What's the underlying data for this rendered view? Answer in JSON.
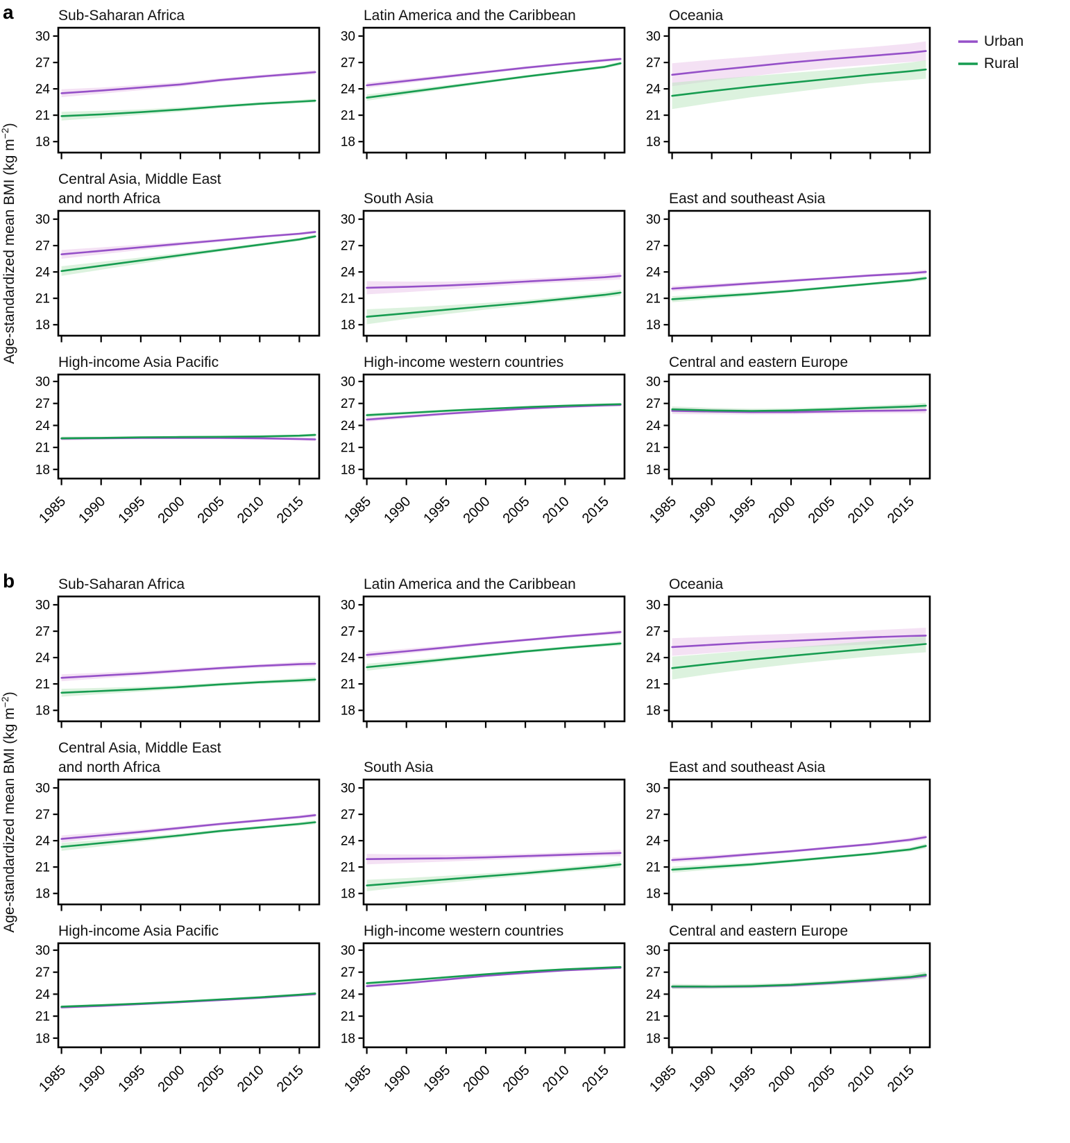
{
  "figure": {
    "y_axis_label": {
      "prefix": "Age-standardized mean BMI (kg m",
      "sup": "−2",
      "suffix": ")"
    },
    "legend": [
      {
        "label": "Urban",
        "color": "#9550c8"
      },
      {
        "label": "Rural",
        "color": "#169c50"
      }
    ]
  },
  "chart_data": {
    "type": "line",
    "x": [
      1985,
      1990,
      1995,
      2000,
      2005,
      2010,
      2015,
      2017
    ],
    "x_ticks": [
      1985,
      1990,
      1995,
      2000,
      2005,
      2010,
      2015
    ],
    "y_ticks": [
      18,
      21,
      24,
      27,
      30
    ],
    "ylim": [
      16.75,
      30.95
    ],
    "xlabel": "",
    "ylabel": "Age-standardized mean BMI (kg m-2)",
    "series_names": [
      "Urban",
      "Rural"
    ],
    "legend_position": "top-right",
    "grid": false,
    "colors": {
      "urban": "#9550c8",
      "rural": "#169c50",
      "urban_band": "#e9c4ea",
      "rural_band": "#b9e6bd"
    },
    "panels": [
      {
        "id": "a",
        "label": "a",
        "charts": [
          {
            "title": "Sub-Saharan Africa",
            "urban": [
              23.5,
              23.8,
              24.15,
              24.5,
              25.0,
              25.4,
              25.75,
              25.9
            ],
            "urban_band": [
              0.45,
              0.35,
              0.3,
              0.25,
              0.2,
              0.18,
              0.2,
              0.25
            ],
            "rural": [
              20.9,
              21.1,
              21.35,
              21.65,
              22.0,
              22.3,
              22.55,
              22.65
            ],
            "rural_band": [
              0.5,
              0.4,
              0.3,
              0.25,
              0.2,
              0.18,
              0.2,
              0.22
            ]
          },
          {
            "title": "Latin America and the Caribbean",
            "urban": [
              24.4,
              24.9,
              25.4,
              25.9,
              26.4,
              26.85,
              27.25,
              27.4
            ],
            "urban_band": [
              0.3,
              0.25,
              0.2,
              0.18,
              0.15,
              0.15,
              0.18,
              0.2
            ],
            "rural": [
              23.0,
              23.6,
              24.2,
              24.8,
              25.4,
              25.95,
              26.5,
              26.9
            ],
            "rural_band": [
              0.35,
              0.28,
              0.22,
              0.18,
              0.15,
              0.15,
              0.18,
              0.2
            ]
          },
          {
            "title": "Oceania",
            "urban": [
              25.6,
              26.1,
              26.55,
              27.0,
              27.4,
              27.75,
              28.1,
              28.3
            ],
            "urban_band": [
              1.3,
              1.2,
              1.1,
              1.05,
              1.0,
              1.0,
              1.05,
              1.1
            ],
            "rural": [
              23.2,
              23.75,
              24.25,
              24.7,
              25.15,
              25.6,
              26.0,
              26.2
            ],
            "rural_band": [
              1.5,
              1.35,
              1.2,
              1.1,
              1.0,
              0.95,
              1.0,
              1.05
            ]
          },
          {
            "title": "Central Asia, Middle East\nand north Africa",
            "urban": [
              26.0,
              26.4,
              26.8,
              27.2,
              27.6,
              28.0,
              28.35,
              28.55
            ],
            "urban_band": [
              0.5,
              0.4,
              0.3,
              0.22,
              0.18,
              0.15,
              0.15,
              0.18
            ],
            "rural": [
              24.1,
              24.7,
              25.3,
              25.9,
              26.5,
              27.1,
              27.7,
              28.05
            ],
            "rural_band": [
              0.55,
              0.45,
              0.35,
              0.25,
              0.2,
              0.17,
              0.18,
              0.2
            ]
          },
          {
            "title": "South Asia",
            "urban": [
              22.2,
              22.3,
              22.45,
              22.65,
              22.9,
              23.15,
              23.4,
              23.55
            ],
            "urban_band": [
              0.75,
              0.6,
              0.45,
              0.35,
              0.3,
              0.3,
              0.35,
              0.4
            ],
            "rural": [
              18.9,
              19.3,
              19.7,
              20.1,
              20.5,
              20.95,
              21.4,
              21.65
            ],
            "rural_band": [
              0.85,
              0.65,
              0.5,
              0.38,
              0.3,
              0.28,
              0.3,
              0.35
            ]
          },
          {
            "title": "East and southeast Asia",
            "urban": [
              22.1,
              22.4,
              22.7,
              23.0,
              23.3,
              23.6,
              23.85,
              24.0
            ],
            "urban_band": [
              0.3,
              0.25,
              0.2,
              0.18,
              0.15,
              0.15,
              0.2,
              0.25
            ],
            "rural": [
              20.9,
              21.2,
              21.5,
              21.85,
              22.25,
              22.65,
              23.05,
              23.3
            ],
            "rural_band": [
              0.35,
              0.28,
              0.22,
              0.18,
              0.15,
              0.15,
              0.2,
              0.25
            ]
          },
          {
            "title": "High-income Asia Pacific",
            "urban": [
              22.2,
              22.25,
              22.3,
              22.3,
              22.3,
              22.25,
              22.15,
              22.1
            ],
            "urban_band": [
              0.25,
              0.2,
              0.17,
              0.15,
              0.15,
              0.17,
              0.22,
              0.27
            ],
            "rural": [
              22.25,
              22.3,
              22.38,
              22.42,
              22.45,
              22.5,
              22.6,
              22.7
            ],
            "rural_band": [
              0.22,
              0.18,
              0.15,
              0.13,
              0.13,
              0.15,
              0.18,
              0.22
            ]
          },
          {
            "title": "High-income western countries",
            "urban": [
              24.8,
              25.2,
              25.6,
              25.95,
              26.3,
              26.55,
              26.75,
              26.8
            ],
            "urban_band": [
              0.3,
              0.25,
              0.2,
              0.17,
              0.15,
              0.15,
              0.17,
              0.2
            ],
            "rural": [
              25.4,
              25.7,
              26.0,
              26.25,
              26.5,
              26.7,
              26.85,
              26.9
            ],
            "rural_band": [
              0.25,
              0.2,
              0.17,
              0.15,
              0.13,
              0.13,
              0.15,
              0.18
            ]
          },
          {
            "title": "Central and eastern Europe",
            "urban": [
              26.0,
              25.9,
              25.82,
              25.82,
              25.9,
              26.0,
              26.05,
              26.1
            ],
            "urban_band": [
              0.45,
              0.38,
              0.33,
              0.3,
              0.3,
              0.32,
              0.38,
              0.45
            ],
            "rural": [
              26.2,
              26.05,
              25.98,
              26.05,
              26.2,
              26.4,
              26.58,
              26.7
            ],
            "rural_band": [
              0.4,
              0.35,
              0.3,
              0.28,
              0.28,
              0.3,
              0.35,
              0.4
            ]
          }
        ]
      },
      {
        "id": "b",
        "label": "b",
        "charts": [
          {
            "title": "Sub-Saharan Africa",
            "urban": [
              21.7,
              21.95,
              22.2,
              22.5,
              22.8,
              23.05,
              23.25,
              23.3
            ],
            "urban_band": [
              0.4,
              0.32,
              0.27,
              0.22,
              0.2,
              0.2,
              0.25,
              0.3
            ],
            "rural": [
              20.0,
              20.2,
              20.4,
              20.65,
              20.95,
              21.2,
              21.4,
              21.5
            ],
            "rural_band": [
              0.45,
              0.35,
              0.28,
              0.22,
              0.2,
              0.2,
              0.25,
              0.3
            ]
          },
          {
            "title": "Latin America and the Caribbean",
            "urban": [
              24.3,
              24.72,
              25.15,
              25.6,
              26.0,
              26.4,
              26.75,
              26.9
            ],
            "urban_band": [
              0.35,
              0.28,
              0.22,
              0.18,
              0.16,
              0.16,
              0.2,
              0.25
            ],
            "rural": [
              22.9,
              23.35,
              23.8,
              24.25,
              24.7,
              25.1,
              25.45,
              25.6
            ],
            "rural_band": [
              0.4,
              0.32,
              0.25,
              0.2,
              0.17,
              0.17,
              0.2,
              0.25
            ]
          },
          {
            "title": "Oceania",
            "urban": [
              25.2,
              25.45,
              25.7,
              25.9,
              26.1,
              26.3,
              26.45,
              26.5
            ],
            "urban_band": [
              1.0,
              0.92,
              0.85,
              0.8,
              0.78,
              0.8,
              0.85,
              0.9
            ],
            "rural": [
              22.8,
              23.3,
              23.78,
              24.2,
              24.6,
              25.0,
              25.38,
              25.55
            ],
            "rural_band": [
              1.3,
              1.15,
              1.05,
              0.95,
              0.9,
              0.88,
              0.9,
              0.95
            ]
          },
          {
            "title": "Central Asia, Middle East\nand north Africa",
            "urban": [
              24.2,
              24.6,
              25.0,
              25.45,
              25.9,
              26.3,
              26.7,
              26.9
            ],
            "urban_band": [
              0.4,
              0.32,
              0.26,
              0.2,
              0.17,
              0.16,
              0.18,
              0.22
            ],
            "rural": [
              23.3,
              23.72,
              24.15,
              24.6,
              25.1,
              25.5,
              25.9,
              26.1
            ],
            "rural_band": [
              0.45,
              0.36,
              0.28,
              0.22,
              0.18,
              0.17,
              0.2,
              0.24
            ]
          },
          {
            "title": "South Asia",
            "urban": [
              21.9,
              21.95,
              22.0,
              22.1,
              22.25,
              22.4,
              22.55,
              22.6
            ],
            "urban_band": [
              0.6,
              0.48,
              0.38,
              0.3,
              0.27,
              0.27,
              0.32,
              0.38
            ],
            "rural": [
              18.9,
              19.25,
              19.6,
              19.95,
              20.3,
              20.7,
              21.1,
              21.3
            ],
            "rural_band": [
              0.65,
              0.5,
              0.4,
              0.32,
              0.27,
              0.26,
              0.3,
              0.36
            ]
          },
          {
            "title": "East and southeast Asia",
            "urban": [
              21.8,
              22.1,
              22.45,
              22.8,
              23.2,
              23.6,
              24.1,
              24.4
            ],
            "urban_band": [
              0.3,
              0.25,
              0.2,
              0.17,
              0.15,
              0.16,
              0.22,
              0.28
            ],
            "rural": [
              20.7,
              21.0,
              21.3,
              21.7,
              22.1,
              22.5,
              23.0,
              23.4
            ],
            "rural_band": [
              0.35,
              0.28,
              0.22,
              0.18,
              0.16,
              0.17,
              0.22,
              0.28
            ]
          },
          {
            "title": "High-income Asia Pacific",
            "urban": [
              22.2,
              22.4,
              22.65,
              22.9,
              23.2,
              23.5,
              23.85,
              24.0
            ],
            "urban_band": [
              0.2,
              0.17,
              0.14,
              0.12,
              0.12,
              0.14,
              0.18,
              0.22
            ],
            "rural": [
              22.3,
              22.5,
              22.72,
              22.98,
              23.28,
              23.58,
              23.93,
              24.1
            ],
            "rural_band": [
              0.18,
              0.15,
              0.13,
              0.11,
              0.11,
              0.13,
              0.16,
              0.2
            ]
          },
          {
            "title": "High-income western countries",
            "urban": [
              25.1,
              25.5,
              26.0,
              26.5,
              26.9,
              27.25,
              27.5,
              27.6
            ],
            "urban_band": [
              0.22,
              0.18,
              0.15,
              0.13,
              0.12,
              0.13,
              0.15,
              0.18
            ],
            "rural": [
              25.5,
              25.88,
              26.3,
              26.72,
              27.1,
              27.4,
              27.62,
              27.7
            ],
            "rural_band": [
              0.2,
              0.17,
              0.14,
              0.12,
              0.11,
              0.12,
              0.14,
              0.17
            ]
          },
          {
            "title": "Central and eastern Europe",
            "urban": [
              25.0,
              25.0,
              25.05,
              25.2,
              25.5,
              25.85,
              26.25,
              26.5
            ],
            "urban_band": [
              0.3,
              0.27,
              0.25,
              0.24,
              0.25,
              0.28,
              0.33,
              0.4
            ],
            "rural": [
              25.05,
              25.03,
              25.1,
              25.28,
              25.58,
              25.95,
              26.35,
              26.65
            ],
            "rural_band": [
              0.35,
              0.3,
              0.28,
              0.27,
              0.28,
              0.3,
              0.36,
              0.44
            ]
          }
        ]
      }
    ]
  }
}
